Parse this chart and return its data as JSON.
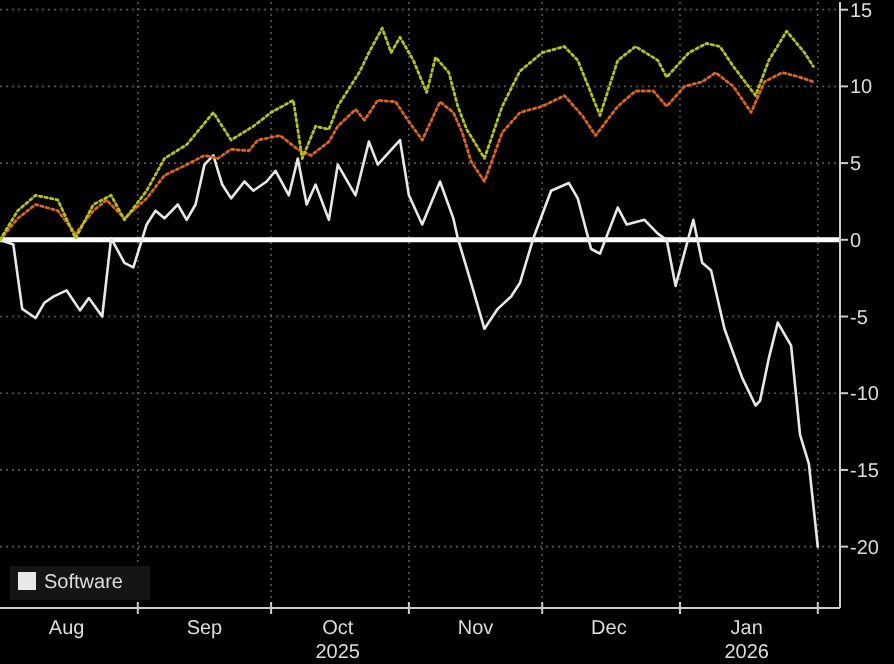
{
  "chart_data": {
    "type": "line",
    "x": [
      "2025-08-01",
      "2025-08-04",
      "2025-08-06",
      "2025-08-09",
      "2025-08-11",
      "2025-08-13",
      "2025-08-16",
      "2025-08-19",
      "2025-08-21",
      "2025-08-24",
      "2025-08-26",
      "2025-08-29",
      "2025-08-31",
      "2025-09-03",
      "2025-09-05",
      "2025-09-07",
      "2025-09-10",
      "2025-09-12",
      "2025-09-14",
      "2025-09-16",
      "2025-09-18",
      "2025-09-20",
      "2025-09-22",
      "2025-09-25",
      "2025-09-27",
      "2025-09-30",
      "2025-10-02",
      "2025-10-05",
      "2025-10-07",
      "2025-10-09",
      "2025-10-11",
      "2025-10-14",
      "2025-10-16",
      "2025-10-20",
      "2025-10-23",
      "2025-10-25",
      "2025-10-30",
      "2025-11-01",
      "2025-11-04",
      "2025-11-08",
      "2025-11-11",
      "2025-11-12",
      "2025-11-15",
      "2025-11-18",
      "2025-11-21",
      "2025-11-24",
      "2025-11-26",
      "2025-11-29",
      "2025-12-03",
      "2025-12-07",
      "2025-12-09",
      "2025-12-12",
      "2025-12-14",
      "2025-12-18",
      "2025-12-20",
      "2025-12-24",
      "2025-12-27",
      "2025-12-29",
      "2025-12-31",
      "2026-01-04",
      "2026-01-06",
      "2026-01-08",
      "2026-01-11",
      "2026-01-15",
      "2026-01-18",
      "2026-01-19",
      "2026-01-21",
      "2026-01-23",
      "2026-01-26",
      "2026-01-28",
      "2026-01-30",
      "2026-02-01"
    ],
    "series": [
      {
        "name": "Software",
        "color": "#e8e8e8",
        "line_style": "solid",
        "values": [
          0,
          -0.3,
          -4.5,
          -5.1,
          -4.1,
          -3.7,
          -3.3,
          -4.6,
          -3.8,
          -5,
          0.1,
          -1.5,
          -1.8,
          1,
          1.9,
          1.4,
          2.3,
          1.3,
          2.3,
          4.9,
          5.5,
          3.6,
          2.7,
          3.8,
          3.2,
          3.8,
          4.5,
          2.9,
          5.3,
          2.3,
          3.6,
          1.3,
          4.9,
          2.9,
          6.4,
          4.9,
          6.5,
          2.9,
          1,
          3.8,
          1.4,
          0.1,
          -2.8,
          -5.8,
          -4.5,
          -3.7,
          -2.8,
          0.1,
          3.2,
          3.7,
          2.7,
          -0.6,
          -0.9,
          2.1,
          1,
          1.3,
          0.4,
          0,
          -3,
          1.3,
          -1.5,
          -2,
          -5.8,
          -9,
          -10.8,
          -10.5,
          -7.7,
          -5.4,
          -6.9,
          -12.7,
          -14.6,
          -20
        ]
      },
      {
        "color": "#d9651e",
        "line_style": "dotted",
        "x": [
          "2025-08-01",
          "2025-08-05",
          "2025-08-09",
          "2025-08-14",
          "2025-08-18",
          "2025-08-22",
          "2025-08-25",
          "2025-08-29",
          "2025-09-03",
          "2025-09-07",
          "2025-09-12",
          "2025-09-16",
          "2025-09-19",
          "2025-09-22",
          "2025-09-26",
          "2025-09-28",
          "2025-10-03",
          "2025-10-07",
          "2025-10-10",
          "2025-10-14",
          "2025-10-16",
          "2025-10-20",
          "2025-10-22",
          "2025-10-25",
          "2025-10-29",
          "2025-11-01",
          "2025-11-04",
          "2025-11-08",
          "2025-11-11",
          "2025-11-13",
          "2025-11-15",
          "2025-11-18",
          "2025-11-22",
          "2025-11-26",
          "2025-12-01",
          "2025-12-06",
          "2025-12-10",
          "2025-12-13",
          "2025-12-18",
          "2025-12-22",
          "2025-12-26",
          "2025-12-29",
          "2026-01-02",
          "2026-01-06",
          "2026-01-09",
          "2026-01-13",
          "2026-01-17",
          "2026-01-20",
          "2026-01-24",
          "2026-01-28",
          "2026-01-31"
        ],
        "values": [
          0,
          1.4,
          2.3,
          1.9,
          0.4,
          1.9,
          2.6,
          1.4,
          2.7,
          4.2,
          4.9,
          5.5,
          5.3,
          5.9,
          5.8,
          6.5,
          6.8,
          5.9,
          5.5,
          6.4,
          7.4,
          8.5,
          7.8,
          9.1,
          9,
          7.7,
          6.5,
          9,
          8.3,
          7,
          5.1,
          3.8,
          7,
          8.3,
          8.7,
          9.4,
          8.1,
          6.8,
          8.7,
          9.7,
          9.7,
          8.7,
          10,
          10.3,
          10.9,
          10,
          8.3,
          10.3,
          10.9,
          10.6,
          10.3
        ]
      },
      {
        "color": "#b5c21a",
        "line_style": "dotted",
        "x": [
          "2025-08-01",
          "2025-08-05",
          "2025-08-09",
          "2025-08-14",
          "2025-08-18",
          "2025-08-22",
          "2025-08-26",
          "2025-08-29",
          "2025-09-03",
          "2025-09-07",
          "2025-09-12",
          "2025-09-18",
          "2025-09-22",
          "2025-09-27",
          "2025-10-01",
          "2025-10-06",
          "2025-10-08",
          "2025-10-11",
          "2025-10-14",
          "2025-10-16",
          "2025-10-21",
          "2025-10-23",
          "2025-10-26",
          "2025-10-28",
          "2025-10-30",
          "2025-11-02",
          "2025-11-05",
          "2025-11-07",
          "2025-11-10",
          "2025-11-12",
          "2025-11-14",
          "2025-11-18",
          "2025-11-22",
          "2025-11-26",
          "2025-12-01",
          "2025-12-06",
          "2025-12-09",
          "2025-12-14",
          "2025-12-18",
          "2025-12-22",
          "2025-12-27",
          "2025-12-29",
          "2026-01-03",
          "2026-01-07",
          "2026-01-10",
          "2026-01-13",
          "2026-01-18",
          "2026-01-21",
          "2026-01-25",
          "2026-01-29",
          "2026-01-31"
        ],
        "values": [
          0,
          1.9,
          2.9,
          2.6,
          0.1,
          2.3,
          2.9,
          1.3,
          3.2,
          5.3,
          6.2,
          8.3,
          6.5,
          7.4,
          8.3,
          9.1,
          5.3,
          7.4,
          7.2,
          8.7,
          11,
          12.2,
          13.8,
          12.2,
          13.2,
          11.7,
          9.6,
          11.9,
          10.9,
          8.7,
          7.2,
          5.3,
          8.7,
          11,
          12.2,
          12.6,
          11.7,
          8.1,
          11.7,
          12.6,
          11.7,
          10.6,
          12.2,
          12.8,
          12.6,
          11.3,
          9.4,
          11.7,
          13.6,
          12.2,
          11.3
        ]
      }
    ],
    "xlim": [
      "2025-08-01",
      "2026-02-06"
    ],
    "xticks": [
      {
        "value": "2025-08-16",
        "label": "Aug"
      },
      {
        "value": "2025-09-01",
        "label": null
      },
      {
        "value": "2025-09-16",
        "label": "Sep"
      },
      {
        "value": "2025-10-01",
        "label": null
      },
      {
        "value": "2025-10-16",
        "label": "Oct\n2025"
      },
      {
        "value": "2025-11-01",
        "label": null
      },
      {
        "value": "2025-11-16",
        "label": "Nov"
      },
      {
        "value": "2025-12-01",
        "label": null
      },
      {
        "value": "2025-12-16",
        "label": "Dec"
      },
      {
        "value": "2026-01-01",
        "label": null
      },
      {
        "value": "2026-01-16",
        "label": "Jan\n2026"
      },
      {
        "value": "2026-02-01",
        "label": null
      }
    ],
    "ylim": [
      -24,
      15.5
    ],
    "yticks": [
      -20,
      -15,
      -10,
      -5,
      0,
      5,
      10,
      15
    ],
    "ref_lines": [
      {
        "axis": "y",
        "value": 0,
        "color": "#ffffff"
      }
    ],
    "grid": true,
    "legend": "bottom left"
  }
}
